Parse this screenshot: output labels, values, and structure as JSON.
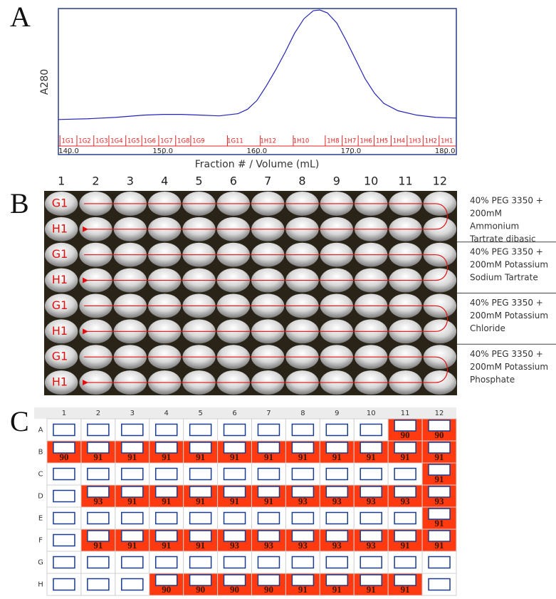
{
  "panel_labels": [
    "A",
    "B",
    "C"
  ],
  "chart_data": {
    "type": "line",
    "ylabel": "A280",
    "xlabel": "Fraction # / Volume (mL)",
    "x": [
      138.9,
      142,
      145,
      148,
      150,
      152,
      154,
      156,
      158,
      159,
      160,
      161,
      162,
      163,
      164,
      165,
      166,
      166.7,
      167.5,
      168.5,
      169.5,
      170.5,
      171.5,
      172.5,
      173.5,
      175,
      177,
      179,
      181.2
    ],
    "series": [
      {
        "color": "#2424b8",
        "values": [
          24,
          24.5,
          25.5,
          27,
          27.5,
          27.5,
          27,
          26.5,
          28,
          31,
          37,
          47,
          58,
          70,
          83,
          93,
          98.5,
          99,
          97,
          90,
          78,
          65,
          52,
          42,
          35,
          30,
          27,
          25.5,
          25
        ]
      }
    ],
    "xlim": [
      138.9,
      181.2
    ],
    "ylim": [
      0,
      100
    ],
    "xticks": [
      {
        "value": 140,
        "label": "140.0"
      },
      {
        "value": 150,
        "label": "150.0"
      },
      {
        "value": 160,
        "label": "160.0"
      },
      {
        "value": 170,
        "label": "170.0"
      },
      {
        "value": 180,
        "label": "180.0"
      }
    ],
    "fractions": {
      "color": "#e02020",
      "labels": [
        "1G1",
        "1G2",
        "1G3",
        "1G4",
        "1G5",
        "1G6",
        "1G7",
        "1G8",
        "1G9",
        "1G11",
        "1H12",
        "1H10",
        "1H8",
        "1H7",
        "1H6",
        "1H5",
        "1H4",
        "1H3",
        "1H2",
        "1H1"
      ],
      "x": [
        139.9,
        141.7,
        143.5,
        145.1,
        146.9,
        148.6,
        150.4,
        152.2,
        153.8,
        157.7,
        161.2,
        164.7,
        168.1,
        169.9,
        171.6,
        173.3,
        175.1,
        176.8,
        178.5,
        180.2
      ]
    }
  },
  "screen": {
    "columns": [
      "1",
      "2",
      "3",
      "4",
      "5",
      "6",
      "7",
      "8",
      "9",
      "10",
      "11",
      "12"
    ],
    "row_labels": [
      "G1",
      "H1",
      "G1",
      "H1",
      "G1",
      "H1",
      "G1",
      "H1"
    ],
    "conditions": [
      [
        "40% PEG 3350 +",
        "200mM",
        "Ammonium",
        "Tartrate dibasic"
      ],
      [
        "40% PEG 3350 +",
        "200mM Potassium",
        "Sodium Tartrate"
      ],
      [
        "40% PEG 3350 +",
        "200mM Potassium",
        "Chloride"
      ],
      [
        "40% PEG 3350 +",
        "200mM Potassium",
        "Phosphate"
      ]
    ]
  },
  "plate": {
    "columns": [
      "1",
      "2",
      "3",
      "4",
      "5",
      "6",
      "7",
      "8",
      "9",
      "10",
      "11",
      "12"
    ],
    "rows": [
      "A",
      "B",
      "C",
      "D",
      "E",
      "F",
      "G",
      "H"
    ],
    "scores": [
      [
        null,
        null,
        null,
        null,
        null,
        null,
        null,
        null,
        null,
        null,
        90,
        90
      ],
      [
        90,
        91,
        91,
        91,
        91,
        91,
        91,
        91,
        91,
        91,
        91,
        91
      ],
      [
        null,
        null,
        null,
        null,
        null,
        null,
        null,
        null,
        null,
        null,
        null,
        91
      ],
      [
        null,
        93,
        91,
        91,
        91,
        91,
        91,
        93,
        93,
        93,
        93,
        93
      ],
      [
        null,
        null,
        null,
        null,
        null,
        null,
        null,
        null,
        null,
        null,
        null,
        91
      ],
      [
        null,
        91,
        91,
        91,
        91,
        93,
        93,
        93,
        93,
        93,
        91,
        91
      ],
      [
        null,
        null,
        null,
        null,
        null,
        null,
        null,
        null,
        null,
        null,
        null,
        null
      ],
      [
        null,
        null,
        null,
        90,
        90,
        90,
        90,
        91,
        91,
        91,
        91,
        null
      ]
    ]
  }
}
